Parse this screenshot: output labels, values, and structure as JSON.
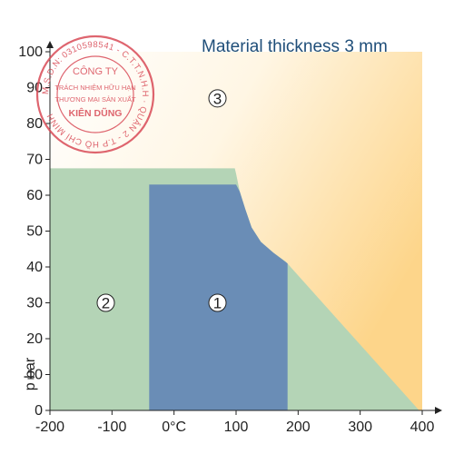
{
  "chart_data": {
    "type": "area",
    "title": "Material thickness  3 mm",
    "xlabel": "",
    "ylabel": "p bar",
    "xlim": [
      -200,
      400
    ],
    "ylim": [
      0,
      100
    ],
    "x_ticks": [
      {
        "value": -200,
        "label": "-200"
      },
      {
        "value": -100,
        "label": "-100"
      },
      {
        "value": 0,
        "label": "0°C"
      },
      {
        "value": 100,
        "label": "100"
      },
      {
        "value": 200,
        "label": "200"
      },
      {
        "value": 300,
        "label": "300"
      },
      {
        "value": 400,
        "label": "400"
      }
    ],
    "y_ticks": [
      0,
      10,
      20,
      30,
      40,
      50,
      60,
      70,
      80,
      90,
      100
    ],
    "grid": false,
    "regions": [
      {
        "label": "3",
        "color": "#fdd58a",
        "label_at": [
          70,
          87
        ],
        "points": [
          [
            -200,
            100
          ],
          [
            400,
            100
          ],
          [
            400,
            0
          ],
          [
            -200,
            0
          ]
        ]
      },
      {
        "label": "2",
        "color": "#b4d4b6",
        "label_at": [
          -110,
          30
        ],
        "points": [
          [
            -200,
            67.5
          ],
          [
            98,
            67.5
          ],
          [
            100,
            66
          ],
          [
            106,
            61
          ],
          [
            115,
            56
          ],
          [
            125,
            51
          ],
          [
            140,
            47
          ],
          [
            160,
            44
          ],
          [
            180,
            41.5
          ],
          [
            395,
            0
          ],
          [
            -200,
            0
          ]
        ]
      },
      {
        "label": "1",
        "color": "#6a8db6",
        "label_at": [
          70,
          30
        ],
        "points": [
          [
            -40,
            63
          ],
          [
            100,
            63
          ],
          [
            106,
            61
          ],
          [
            115,
            56
          ],
          [
            125,
            51
          ],
          [
            140,
            47
          ],
          [
            160,
            44
          ],
          [
            183,
            41
          ],
          [
            183,
            0
          ],
          [
            -40,
            0
          ]
        ]
      }
    ]
  },
  "stamp": {
    "ring_text": "M.S.D.N: 0310598541 - C.T.T.N.H.H · QUẬN 2 - T.P HỒ CHÍ MINH",
    "line1": "CÔNG TY",
    "line2": "TRÁCH NHIỆM HỮU HẠN",
    "line3": "THƯƠNG MẠI SẢN XUẤT",
    "line4": "KIÊN DŨNG",
    "color": "#d94b57"
  }
}
